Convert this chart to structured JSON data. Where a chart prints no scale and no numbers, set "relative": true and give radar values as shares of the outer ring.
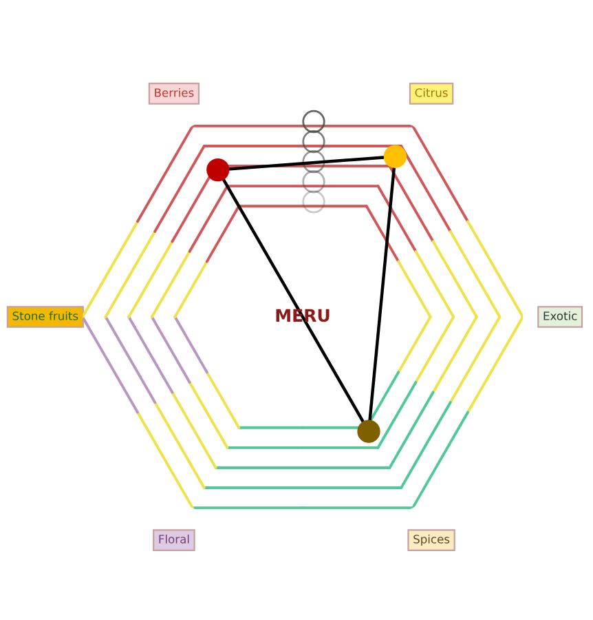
{
  "chart_data": {
    "type": "radar",
    "relative": true,
    "grid": true,
    "marker": "circle",
    "categories": [
      "Berries",
      "Citrus",
      "Exotic",
      "Spices",
      "Floral",
      "Stone fruits"
    ],
    "series": [
      {
        "color": "#000000",
        "colors": [
          "#c00000",
          "#ffc000",
          null,
          "#7f6000",
          null,
          null
        ],
        "values": [
          0.77,
          0.84,
          null,
          0.6,
          null,
          null
        ]
      }
    ],
    "annotations": [
      "MERU"
    ]
  }
}
